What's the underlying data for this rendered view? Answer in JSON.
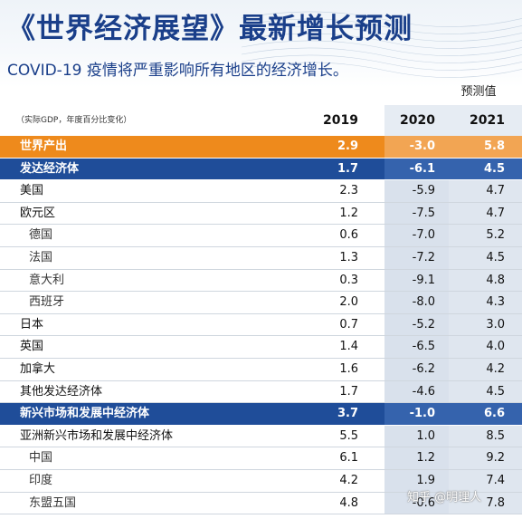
{
  "header": {
    "title": "《世界经济展望》最新增长预测",
    "subtitle": "COVID-19 疫情将严重影响所有地区的经济增长。"
  },
  "table": {
    "forecast_label": "预测值",
    "unit_note": "（实际GDP，年度百分比变化）",
    "columns": [
      "2019",
      "2020",
      "2021"
    ],
    "rows": [
      {
        "label": "世界产出",
        "v2019": "2.9",
        "v2020": "-3.0",
        "v2021": "5.8"
      },
      {
        "label": "发达经济体",
        "v2019": "1.7",
        "v2020": "-6.1",
        "v2021": "4.5"
      },
      {
        "label": "美国",
        "v2019": "2.3",
        "v2020": "-5.9",
        "v2021": "4.7"
      },
      {
        "label": "欧元区",
        "v2019": "1.2",
        "v2020": "-7.5",
        "v2021": "4.7"
      },
      {
        "label": "德国",
        "v2019": "0.6",
        "v2020": "-7.0",
        "v2021": "5.2"
      },
      {
        "label": "法国",
        "v2019": "1.3",
        "v2020": "-7.2",
        "v2021": "4.5"
      },
      {
        "label": "意大利",
        "v2019": "0.3",
        "v2020": "-9.1",
        "v2021": "4.8"
      },
      {
        "label": "西班牙",
        "v2019": "2.0",
        "v2020": "-8.0",
        "v2021": "4.3"
      },
      {
        "label": "日本",
        "v2019": "0.7",
        "v2020": "-5.2",
        "v2021": "3.0"
      },
      {
        "label": "英国",
        "v2019": "1.4",
        "v2020": "-6.5",
        "v2021": "4.0"
      },
      {
        "label": "加拿大",
        "v2019": "1.6",
        "v2020": "-6.2",
        "v2021": "4.2"
      },
      {
        "label": "其他发达经济体",
        "v2019": "1.7",
        "v2020": "-4.6",
        "v2021": "4.5"
      },
      {
        "label": "新兴市场和发展中经济体",
        "v2019": "3.7",
        "v2020": "-1.0",
        "v2021": "6.6"
      },
      {
        "label": "亚洲新兴市场和发展中经济体",
        "v2019": "5.5",
        "v2020": "1.0",
        "v2021": "8.5"
      },
      {
        "label": "中国",
        "v2019": "6.1",
        "v2020": "1.2",
        "v2021": "9.2"
      },
      {
        "label": "印度",
        "v2019": "4.2",
        "v2020": "1.9",
        "v2021": "7.4"
      },
      {
        "label": "东盟五国",
        "v2019": "4.8",
        "v2020": "-0.6",
        "v2021": "7.8"
      }
    ]
  },
  "watermark": "知乎 @明理人",
  "colors": {
    "title_blue": "#1a3f8a",
    "world_orange": "#ee8a1c",
    "group_blue": "#1f4d99",
    "forecast_shade": "#d9e1ec"
  }
}
